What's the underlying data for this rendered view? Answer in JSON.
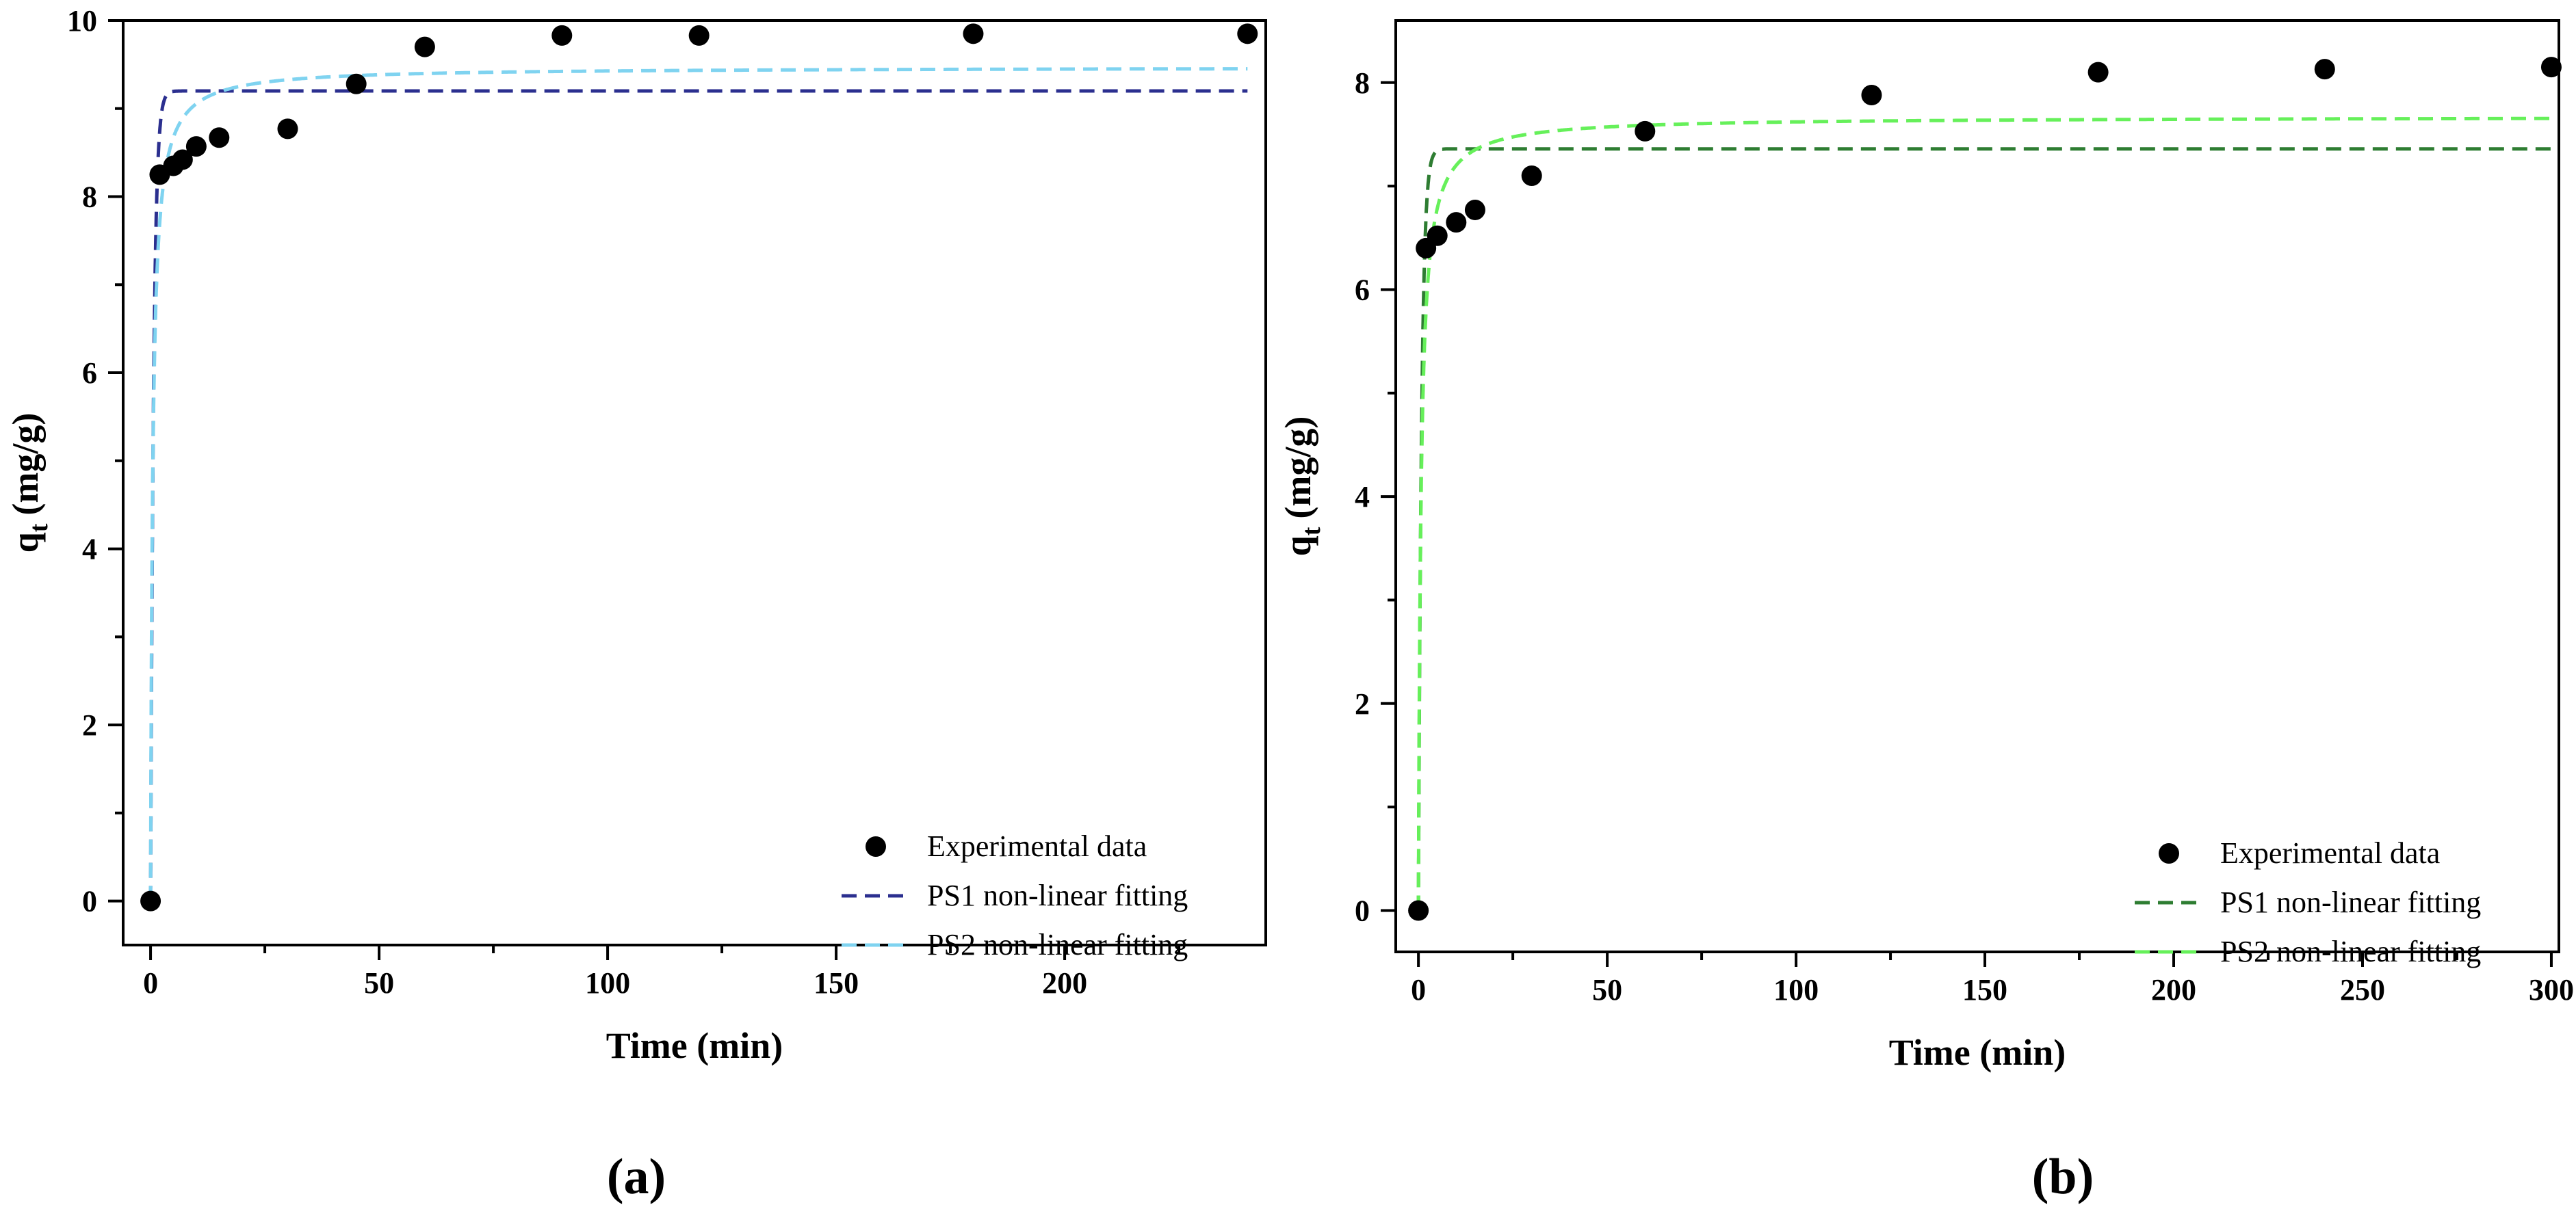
{
  "chart_data": [
    {
      "type": "scatter",
      "panel_label": "(a)",
      "xlabel": "Time (min)",
      "ylabel_main": "q",
      "ylabel_sub": "t",
      "ylabel_unit": "(mg/g)",
      "xlim": [
        -6,
        244
      ],
      "ylim": [
        -0.5,
        10
      ],
      "xticks": [
        0,
        50,
        100,
        150,
        200
      ],
      "yticks": [
        0,
        2,
        4,
        6,
        8,
        10
      ],
      "legend_position": "bottom-right",
      "series": [
        {
          "name": "Experimental data",
          "kind": "points",
          "color": "#000000",
          "x": [
            0,
            2,
            5,
            7,
            10,
            15,
            30,
            45,
            60,
            90,
            120,
            180,
            240
          ],
          "y": [
            0,
            8.25,
            8.35,
            8.42,
            8.57,
            8.67,
            8.77,
            9.28,
            9.7,
            9.83,
            9.83,
            9.85,
            9.85
          ]
        },
        {
          "name": "PS1 non-linear fitting",
          "kind": "pseudo-first-order",
          "color": "#2b2f8f",
          "qe": 9.2,
          "k": 1.5,
          "x_max": 240
        },
        {
          "name": "PS2 non-linear fitting",
          "kind": "pseudo-second-order",
          "color": "#7fd3f0",
          "qe": 9.47,
          "k": 0.23,
          "x_max": 240
        }
      ]
    },
    {
      "type": "scatter",
      "panel_label": "(b)",
      "xlabel": "Time (min)",
      "ylabel_main": "q",
      "ylabel_sub": "t",
      "ylabel_unit": "(mg/g)",
      "xlim": [
        -6,
        302
      ],
      "ylim": [
        -0.4,
        8.6
      ],
      "xticks": [
        0,
        50,
        100,
        150,
        200,
        250,
        300
      ],
      "yticks": [
        0,
        2,
        4,
        6,
        8
      ],
      "legend_position": "bottom-right",
      "series": [
        {
          "name": "Experimental data",
          "kind": "points",
          "color": "#000000",
          "x": [
            0,
            2,
            5,
            10,
            15,
            30,
            60,
            120,
            180,
            240,
            300
          ],
          "y": [
            0,
            6.4,
            6.52,
            6.65,
            6.77,
            7.1,
            7.53,
            7.88,
            8.1,
            8.13,
            8.15
          ]
        },
        {
          "name": "PS1 non-linear fitting",
          "kind": "pseudo-first-order",
          "color": "#2e7d32",
          "qe": 7.36,
          "k": 1.2,
          "x_max": 300
        },
        {
          "name": "PS2 non-linear fitting",
          "kind": "pseudo-second-order",
          "color": "#66f05a",
          "qe": 7.67,
          "k": 0.2,
          "x_max": 300
        }
      ]
    }
  ]
}
